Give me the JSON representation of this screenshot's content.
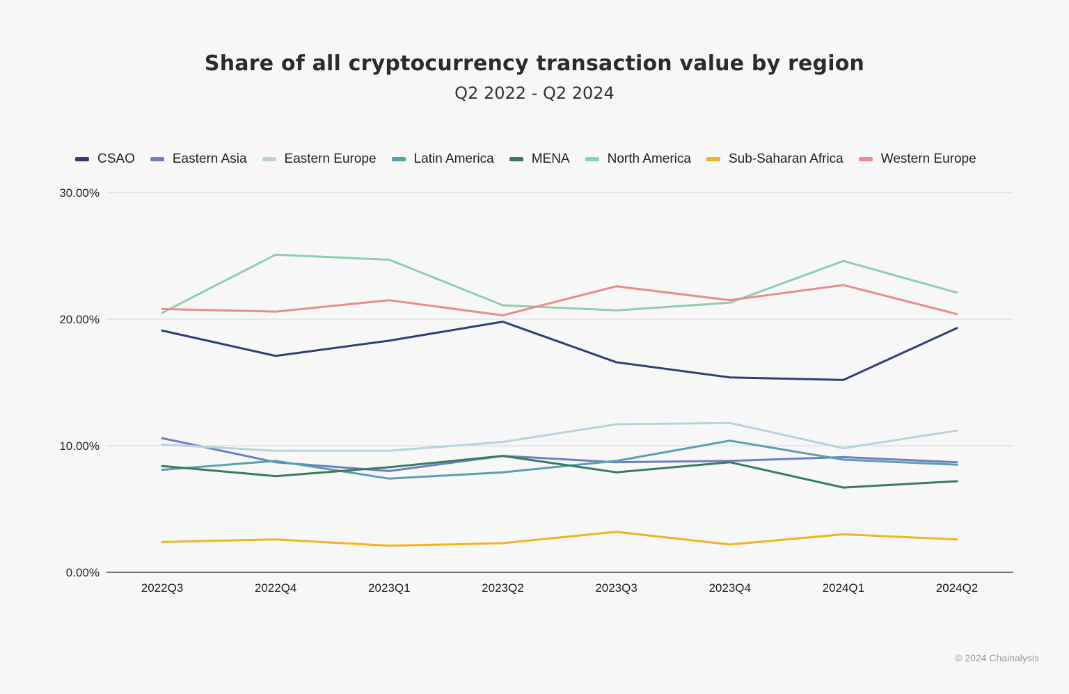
{
  "title": "Share of all cryptocurrency transaction value by region",
  "subtitle": "Q2 2022 - Q2 2024",
  "copyright": "© 2024 Chainalysis",
  "chart_data": {
    "type": "line",
    "title": "Share of all cryptocurrency transaction value by region",
    "subtitle": "Q2 2022 - Q2 2024",
    "xlabel": "",
    "ylabel": "",
    "categories": [
      "2022Q3",
      "2022Q4",
      "2023Q1",
      "2023Q2",
      "2023Q3",
      "2023Q4",
      "2024Q1",
      "2024Q2"
    ],
    "ylim": [
      0,
      30
    ],
    "yticks": [
      "0.00%",
      "10.00%",
      "20.00%",
      "30.00%"
    ],
    "ytick_values": [
      0,
      10,
      20,
      30
    ],
    "grid": true,
    "legend_position": "top",
    "series": [
      {
        "name": "CSAO",
        "color": "#2f3f75",
        "values": [
          19.1,
          17.1,
          18.3,
          19.8,
          16.6,
          15.4,
          15.2,
          19.3
        ]
      },
      {
        "name": "Eastern Asia",
        "color": "#6e7ec6",
        "values": [
          10.6,
          8.7,
          8.0,
          9.2,
          8.7,
          8.8,
          9.1,
          8.7
        ]
      },
      {
        "name": "Eastern Europe",
        "color": "#b7d3dd",
        "values": [
          10.1,
          9.6,
          9.6,
          10.3,
          11.7,
          11.8,
          9.8,
          11.2
        ]
      },
      {
        "name": "Latin America",
        "color": "#5b9eb0",
        "values": [
          8.1,
          8.8,
          7.4,
          7.9,
          8.8,
          10.4,
          8.9,
          8.5
        ]
      },
      {
        "name": "MENA",
        "color": "#3a7a5f",
        "values": [
          8.4,
          7.6,
          8.3,
          9.2,
          7.9,
          8.7,
          6.7,
          7.2
        ]
      },
      {
        "name": "North America",
        "color": "#8fcfa9",
        "values": [
          20.5,
          25.1,
          24.7,
          21.1,
          20.7,
          21.3,
          24.6,
          22.1
        ]
      },
      {
        "name": "Sub-Saharan Africa",
        "color": "#f4b223",
        "values": [
          2.4,
          2.6,
          2.1,
          2.3,
          3.2,
          2.2,
          3.0,
          2.6
        ]
      },
      {
        "name": "Western Europe",
        "color": "#ec8a8c",
        "values": [
          20.8,
          20.6,
          21.5,
          20.3,
          22.6,
          21.5,
          22.7,
          20.4
        ]
      }
    ]
  }
}
